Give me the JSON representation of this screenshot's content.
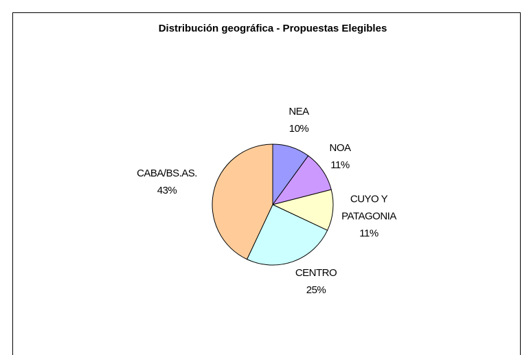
{
  "chart_data": {
    "type": "pie",
    "title": "Distribución geográfica - Propuestas Elegibles",
    "categories": [
      "NEA",
      "NOA",
      "CUYO Y PATAGONIA",
      "CENTRO",
      "CABA/BS.AS."
    ],
    "values": [
      10,
      11,
      11,
      25,
      43
    ],
    "value_labels": [
      "10%",
      "11%",
      "11%",
      "25%",
      "43%"
    ],
    "colors": [
      "#9999ff",
      "#cc99ff",
      "#ffffcc",
      "#ccffff",
      "#ffcc99"
    ]
  }
}
